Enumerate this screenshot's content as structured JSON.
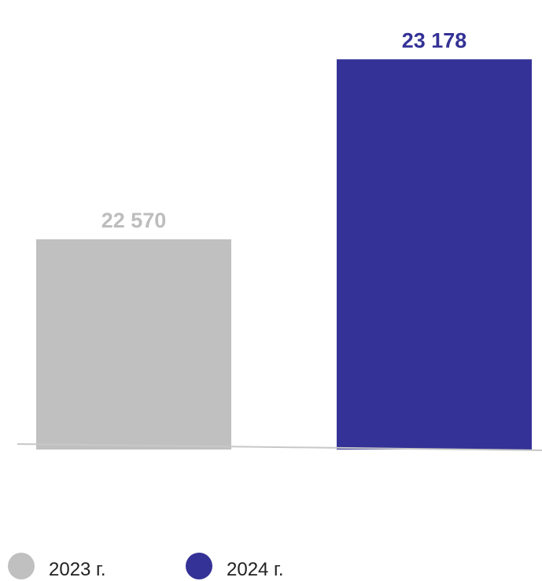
{
  "chart_data": {
    "type": "bar",
    "categories": [
      "2023 г.",
      "2024 г."
    ],
    "values": [
      22570,
      23178
    ],
    "data_labels": [
      "22 570",
      "23 178"
    ],
    "colors": [
      "#c0c0c0",
      "#343296"
    ],
    "label_colors": [
      "#bdbdbd",
      "#343296"
    ],
    "ylim": [
      21860,
      23240
    ],
    "axis_color": "#c8c8c8",
    "grid": false,
    "legend_position": "bottom-left"
  }
}
